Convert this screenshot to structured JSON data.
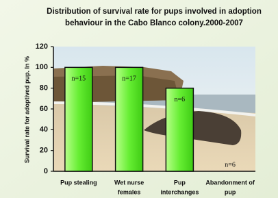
{
  "chart_data": {
    "type": "bar",
    "title": [
      "Distribution of survival rate for pups involved in adoption",
      "behaviour in the Cabo Blanco colony.2000-2007"
    ],
    "y_label": "Survival rate for adoptived pup. In %",
    "categories": [
      [
        "Pup stealing"
      ],
      [
        "Wet nurse",
        "females"
      ],
      [
        "Pup",
        "interchanges"
      ],
      [
        "Abandonment of",
        "pup"
      ]
    ],
    "values": [
      100,
      100,
      80,
      0
    ],
    "annotations": [
      "n=15",
      "n=17",
      "n=6",
      "n=6"
    ],
    "color": "#66ee33",
    "ylim": [
      0,
      120
    ],
    "yticks": [
      0,
      20,
      40,
      60,
      80,
      100,
      120
    ]
  }
}
